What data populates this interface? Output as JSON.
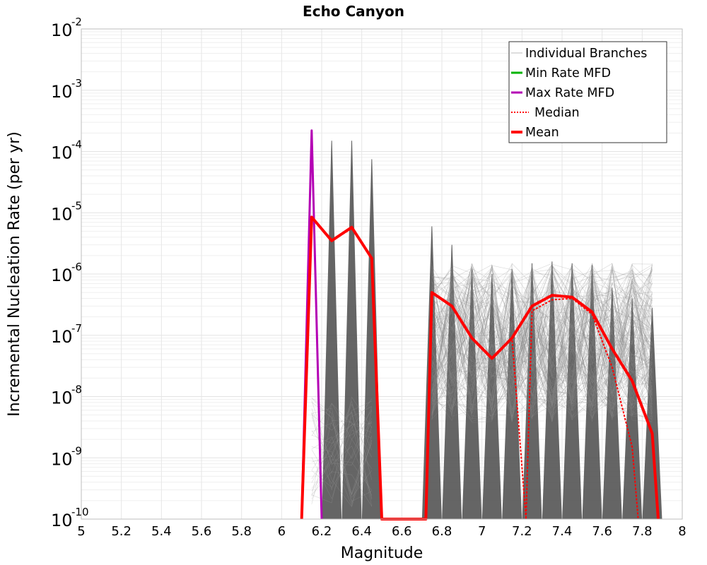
{
  "chart_data": {
    "type": "line",
    "title": "Echo Canyon",
    "xlabel": "Magnitude",
    "ylabel": "Incremental Nucleation Rate (per yr)",
    "xlim": [
      5,
      8
    ],
    "ylim": [
      1e-10,
      0.01
    ],
    "yscale": "log",
    "grid": true,
    "legend_position": "top-right",
    "x_ticks": [
      "5",
      "5.2",
      "5.4",
      "5.6",
      "5.8",
      "6",
      "6.2",
      "6.4",
      "6.6",
      "6.8",
      "7",
      "7.2",
      "7.4",
      "7.6",
      "7.8",
      "8"
    ],
    "y_ticks": [
      {
        "base": "10",
        "exp": "-10"
      },
      {
        "base": "10",
        "exp": "-9"
      },
      {
        "base": "10",
        "exp": "-8"
      },
      {
        "base": "10",
        "exp": "-7"
      },
      {
        "base": "10",
        "exp": "-6"
      },
      {
        "base": "10",
        "exp": "-5"
      },
      {
        "base": "10",
        "exp": "-4"
      },
      {
        "base": "10",
        "exp": "-3"
      },
      {
        "base": "10",
        "exp": "-2"
      }
    ],
    "series": [
      {
        "name": "Individual Branches",
        "color": "#555555",
        "style": "thin-band",
        "spikes": [
          {
            "x": 6.25,
            "peak": 0.00015
          },
          {
            "x": 6.35,
            "peak": 0.00015
          },
          {
            "x": 6.45,
            "peak": 7.5e-05
          },
          {
            "x": 6.75,
            "peak": 6e-06
          },
          {
            "x": 6.85,
            "peak": 3e-06
          },
          {
            "x": 6.95,
            "peak": 1.2e-06
          },
          {
            "x": 7.05,
            "peak": 1e-06
          },
          {
            "x": 7.15,
            "peak": 1.2e-06
          },
          {
            "x": 7.25,
            "peak": 1.5e-06
          },
          {
            "x": 7.35,
            "peak": 1.6e-06
          },
          {
            "x": 7.45,
            "peak": 1.5e-06
          },
          {
            "x": 7.55,
            "peak": 1.4e-06
          },
          {
            "x": 7.65,
            "peak": 6e-07
          },
          {
            "x": 7.75,
            "peak": 4e-07
          },
          {
            "x": 7.85,
            "peak": 2.8e-07
          }
        ]
      },
      {
        "name": "Min Rate MFD",
        "color": "#00b400",
        "x": [],
        "y": []
      },
      {
        "name": "Max Rate MFD",
        "color": "#b400b4",
        "x": [
          6.1,
          6.15,
          6.2
        ],
        "y": [
          1e-10,
          0.00022,
          1e-10
        ]
      },
      {
        "name": "Median",
        "color": "#ff0000",
        "dashed": true,
        "x": [
          6.1,
          6.15,
          6.25,
          6.35,
          6.45,
          6.5,
          6.72,
          6.75,
          6.85,
          6.95,
          7.05,
          7.15,
          7.22,
          7.25,
          7.35,
          7.45,
          7.55,
          7.65,
          7.75,
          7.78
        ],
        "y": [
          1e-10,
          8.5e-06,
          3.5e-06,
          5.5e-06,
          1.8e-06,
          1e-10,
          1e-10,
          5e-07,
          3e-07,
          9e-08,
          4.2e-08,
          9e-08,
          1e-10,
          2.5e-07,
          3.8e-07,
          4e-07,
          2.2e-07,
          3e-08,
          1.5e-09,
          1e-10
        ]
      },
      {
        "name": "Mean",
        "color": "#ff0000",
        "x": [
          6.1,
          6.15,
          6.25,
          6.35,
          6.45,
          6.5,
          6.72,
          6.75,
          6.85,
          6.95,
          7.05,
          7.15,
          7.25,
          7.35,
          7.45,
          7.55,
          7.65,
          7.75,
          7.85,
          7.88
        ],
        "y": [
          1e-10,
          8.5e-06,
          3.5e-06,
          5.8e-06,
          1.8e-06,
          1e-10,
          1e-10,
          5e-07,
          3e-07,
          9e-08,
          4.2e-08,
          9e-08,
          3e-07,
          4.5e-07,
          4.2e-07,
          2.4e-07,
          6e-08,
          1.8e-08,
          2.5e-09,
          1e-10
        ]
      }
    ]
  }
}
